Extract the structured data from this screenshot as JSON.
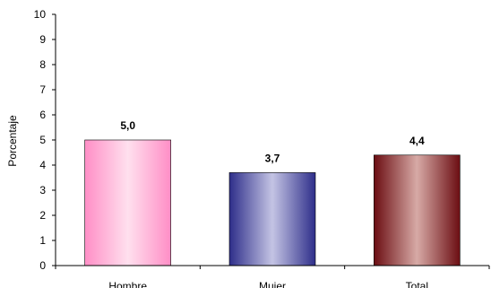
{
  "chart_data": {
    "type": "bar",
    "title": "",
    "xlabel": "",
    "ylabel": "Porcentaje",
    "ylim": [
      0,
      10
    ],
    "yticks": [
      0,
      1,
      2,
      3,
      4,
      5,
      6,
      7,
      8,
      9,
      10
    ],
    "categories": [
      "Hombre",
      "Mujer",
      "Total"
    ],
    "values": [
      5.0,
      3.7,
      4.4
    ],
    "value_labels": [
      "5,0",
      "3,7",
      "4,4"
    ],
    "bar_colors": [
      {
        "light": "#ffe0ee",
        "dark": "#ff8ec6"
      },
      {
        "light": "#c4c4e4",
        "dark": "#2e2e8a"
      },
      {
        "light": "#d7aaa6",
        "dark": "#6b0d12"
      }
    ],
    "grid": false,
    "legend": "none"
  }
}
